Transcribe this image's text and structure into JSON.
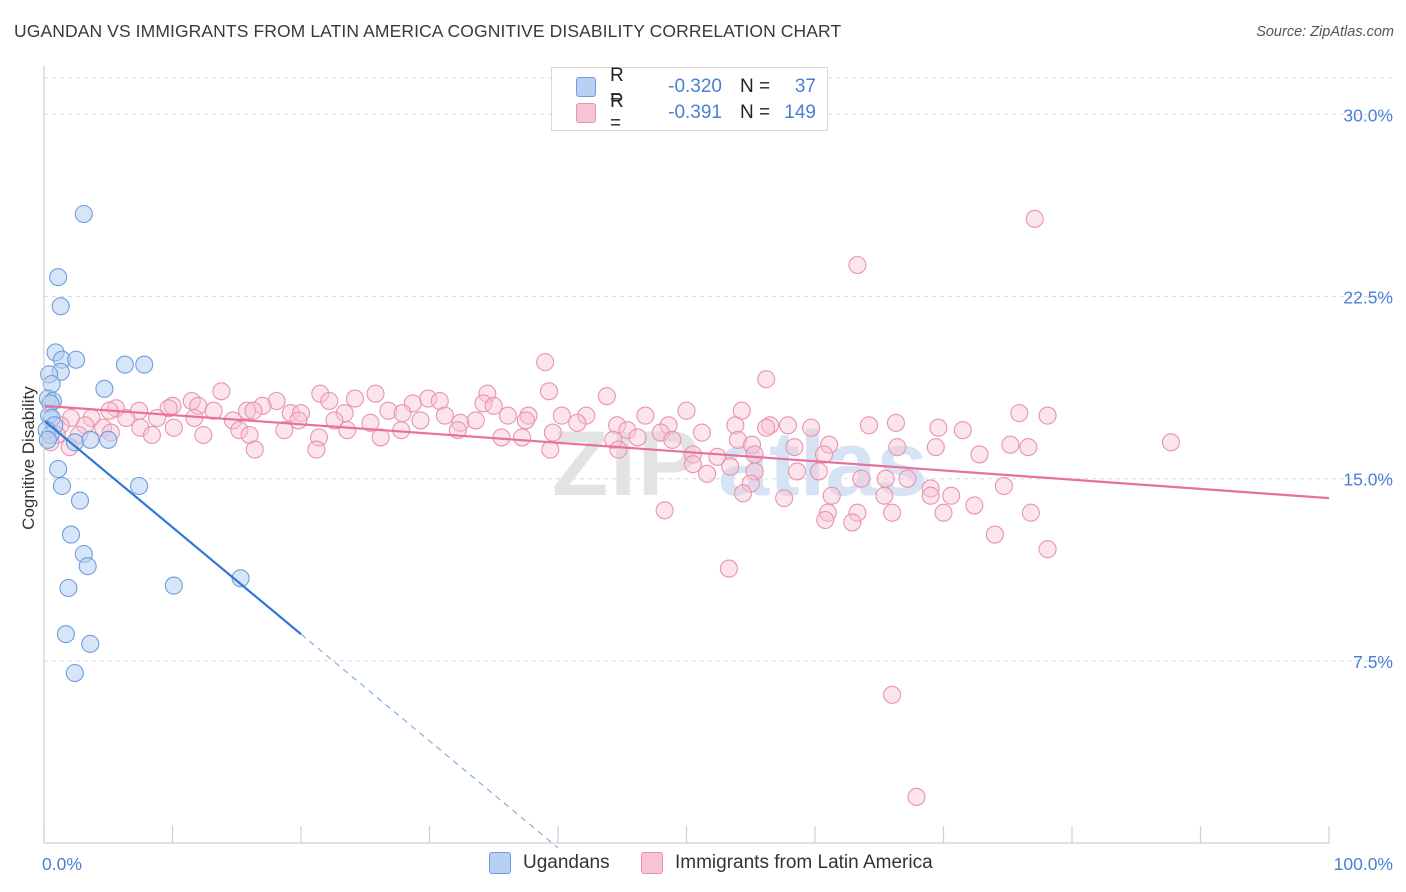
{
  "header": {
    "title": "UGANDAN VS IMMIGRANTS FROM LATIN AMERICA COGNITIVE DISABILITY CORRELATION CHART",
    "source": "Source: ZipAtlas.com"
  },
  "watermark": {
    "zip": "ZIP",
    "atlas": "atlas"
  },
  "colors": {
    "ugandans_fill": "#b7d0f3",
    "ugandans_stroke": "#6e9edf",
    "ugandans_line": "#2f78d6",
    "latam_fill": "#f8c4d4",
    "latam_stroke": "#e893b0",
    "latam_line": "#e8709a",
    "accent_text": "#4a7fd6",
    "grid": "#d8d8d8"
  },
  "legend_top": {
    "rows": [
      {
        "r_label": "R =",
        "r_value": "-0.320",
        "n_label": "N =",
        "n_value": "37"
      },
      {
        "r_label": "R =",
        "r_value": "-0.391",
        "n_label": "N =",
        "n_value": "149"
      }
    ]
  },
  "legend_bottom": {
    "items": [
      {
        "label": "Ugandans"
      },
      {
        "label": "Immigrants from Latin America"
      }
    ]
  },
  "chart_data": {
    "type": "scatter",
    "title": "UGANDAN VS IMMIGRANTS FROM LATIN AMERICA COGNITIVE DISABILITY CORRELATION CHART",
    "xlabel": "",
    "ylabel": "Cognitive Disability",
    "xlim": [
      0,
      100
    ],
    "ylim": [
      0,
      31.5
    ],
    "x_tick_labels": [
      "0.0%",
      "100.0%"
    ],
    "y_ticks": [
      7.5,
      15.0,
      22.5,
      30.0
    ],
    "y_tick_labels": [
      "7.5%",
      "15.0%",
      "22.5%",
      "30.0%"
    ],
    "grid": true,
    "legend_position": "top-center",
    "series": [
      {
        "name": "Ugandans",
        "r": -0.32,
        "n": 37,
        "trend": {
          "x0": 0.0,
          "y0": 17.4,
          "x1": 20.0,
          "y1": 8.6,
          "dash_to_x": 40.0,
          "dash_to_y": -0.2
        },
        "points": [
          [
            3.1,
            25.9
          ],
          [
            1.1,
            23.3
          ],
          [
            1.3,
            22.1
          ],
          [
            0.9,
            20.2
          ],
          [
            1.4,
            19.9
          ],
          [
            2.5,
            19.9
          ],
          [
            7.8,
            19.7
          ],
          [
            6.3,
            19.7
          ],
          [
            1.3,
            19.4
          ],
          [
            0.4,
            19.3
          ],
          [
            0.6,
            18.9
          ],
          [
            4.7,
            18.7
          ],
          [
            0.3,
            18.3
          ],
          [
            0.7,
            18.2
          ],
          [
            0.5,
            18.1
          ],
          [
            0.4,
            17.6
          ],
          [
            0.6,
            17.5
          ],
          [
            0.8,
            17.2
          ],
          [
            0.2,
            17.0
          ],
          [
            0.5,
            16.8
          ],
          [
            0.3,
            16.6
          ],
          [
            3.6,
            16.6
          ],
          [
            5.0,
            16.6
          ],
          [
            2.4,
            16.5
          ],
          [
            1.1,
            15.4
          ],
          [
            1.4,
            14.7
          ],
          [
            7.4,
            14.7
          ],
          [
            2.8,
            14.1
          ],
          [
            2.1,
            12.7
          ],
          [
            3.1,
            11.9
          ],
          [
            3.4,
            11.4
          ],
          [
            15.3,
            10.9
          ],
          [
            1.9,
            10.5
          ],
          [
            10.1,
            10.6
          ],
          [
            1.7,
            8.6
          ],
          [
            3.6,
            8.2
          ],
          [
            2.4,
            7.0
          ]
        ]
      },
      {
        "name": "Immigrants from Latin America",
        "r": -0.391,
        "n": 149,
        "trend": {
          "x0": 0.0,
          "y0": 18.0,
          "x1": 100.0,
          "y1": 14.2
        },
        "points": [
          [
            77.1,
            25.7
          ],
          [
            63.3,
            23.8
          ],
          [
            39.0,
            19.8
          ],
          [
            56.2,
            19.1
          ],
          [
            13.8,
            18.6
          ],
          [
            21.5,
            18.5
          ],
          [
            25.8,
            18.5
          ],
          [
            34.5,
            18.5
          ],
          [
            39.3,
            18.6
          ],
          [
            43.8,
            18.4
          ],
          [
            29.9,
            18.3
          ],
          [
            11.5,
            18.2
          ],
          [
            18.1,
            18.2
          ],
          [
            22.2,
            18.2
          ],
          [
            24.2,
            18.3
          ],
          [
            28.7,
            18.1
          ],
          [
            30.8,
            18.2
          ],
          [
            34.2,
            18.1
          ],
          [
            35.0,
            18.0
          ],
          [
            10.0,
            18.0
          ],
          [
            12.0,
            18.0
          ],
          [
            17.0,
            18.0
          ],
          [
            5.6,
            17.9
          ],
          [
            9.7,
            17.9
          ],
          [
            15.8,
            17.8
          ],
          [
            26.8,
            17.8
          ],
          [
            50.0,
            17.8
          ],
          [
            54.3,
            17.8
          ],
          [
            75.9,
            17.7
          ],
          [
            78.1,
            17.6
          ],
          [
            5.1,
            17.8
          ],
          [
            7.4,
            17.8
          ],
          [
            13.2,
            17.8
          ],
          [
            16.3,
            17.8
          ],
          [
            19.2,
            17.7
          ],
          [
            20.0,
            17.7
          ],
          [
            23.4,
            17.7
          ],
          [
            27.9,
            17.7
          ],
          [
            31.2,
            17.6
          ],
          [
            36.1,
            17.6
          ],
          [
            37.7,
            17.6
          ],
          [
            40.3,
            17.6
          ],
          [
            42.2,
            17.6
          ],
          [
            46.8,
            17.6
          ],
          [
            2.1,
            17.5
          ],
          [
            3.7,
            17.5
          ],
          [
            6.4,
            17.5
          ],
          [
            8.8,
            17.5
          ],
          [
            11.7,
            17.5
          ],
          [
            14.7,
            17.4
          ],
          [
            19.8,
            17.4
          ],
          [
            22.6,
            17.4
          ],
          [
            25.4,
            17.3
          ],
          [
            29.3,
            17.4
          ],
          [
            32.4,
            17.3
          ],
          [
            33.6,
            17.4
          ],
          [
            37.5,
            17.4
          ],
          [
            41.5,
            17.3
          ],
          [
            44.6,
            17.2
          ],
          [
            48.6,
            17.2
          ],
          [
            53.8,
            17.2
          ],
          [
            56.5,
            17.2
          ],
          [
            57.9,
            17.2
          ],
          [
            1.3,
            17.2
          ],
          [
            3.2,
            17.2
          ],
          [
            4.6,
            17.1
          ],
          [
            7.5,
            17.1
          ],
          [
            10.1,
            17.1
          ],
          [
            15.2,
            17.0
          ],
          [
            18.7,
            17.0
          ],
          [
            23.6,
            17.0
          ],
          [
            27.8,
            17.0
          ],
          [
            32.2,
            17.0
          ],
          [
            39.6,
            16.9
          ],
          [
            45.4,
            17.0
          ],
          [
            48.0,
            16.9
          ],
          [
            51.2,
            16.9
          ],
          [
            56.2,
            17.1
          ],
          [
            59.7,
            17.1
          ],
          [
            66.3,
            17.3
          ],
          [
            64.2,
            17.2
          ],
          [
            69.6,
            17.1
          ],
          [
            71.5,
            17.0
          ],
          [
            1.0,
            16.8
          ],
          [
            2.7,
            16.8
          ],
          [
            5.2,
            16.9
          ],
          [
            8.4,
            16.8
          ],
          [
            12.4,
            16.8
          ],
          [
            16.0,
            16.8
          ],
          [
            21.4,
            16.7
          ],
          [
            26.2,
            16.7
          ],
          [
            35.6,
            16.7
          ],
          [
            37.2,
            16.7
          ],
          [
            44.3,
            16.6
          ],
          [
            46.2,
            16.7
          ],
          [
            48.9,
            16.6
          ],
          [
            54.0,
            16.6
          ],
          [
            55.1,
            16.4
          ],
          [
            58.4,
            16.3
          ],
          [
            61.1,
            16.4
          ],
          [
            66.4,
            16.3
          ],
          [
            69.4,
            16.3
          ],
          [
            75.2,
            16.4
          ],
          [
            76.6,
            16.3
          ],
          [
            87.7,
            16.5
          ],
          [
            0.5,
            16.5
          ],
          [
            2.0,
            16.3
          ],
          [
            16.4,
            16.2
          ],
          [
            21.2,
            16.2
          ],
          [
            39.4,
            16.2
          ],
          [
            44.7,
            16.2
          ],
          [
            50.5,
            16.0
          ],
          [
            52.4,
            15.9
          ],
          [
            55.3,
            16.0
          ],
          [
            60.7,
            16.0
          ],
          [
            72.8,
            16.0
          ],
          [
            50.5,
            15.6
          ],
          [
            53.4,
            15.5
          ],
          [
            55.3,
            15.3
          ],
          [
            58.6,
            15.3
          ],
          [
            60.3,
            15.3
          ],
          [
            63.6,
            15.0
          ],
          [
            65.5,
            15.0
          ],
          [
            67.2,
            15.0
          ],
          [
            51.6,
            15.2
          ],
          [
            55.0,
            14.8
          ],
          [
            69.0,
            14.6
          ],
          [
            74.7,
            14.7
          ],
          [
            54.4,
            14.4
          ],
          [
            57.6,
            14.2
          ],
          [
            61.3,
            14.3
          ],
          [
            65.4,
            14.3
          ],
          [
            69.0,
            14.3
          ],
          [
            70.6,
            14.3
          ],
          [
            48.3,
            13.7
          ],
          [
            61.0,
            13.6
          ],
          [
            63.3,
            13.6
          ],
          [
            66.0,
            13.6
          ],
          [
            70.0,
            13.6
          ],
          [
            72.4,
            13.9
          ],
          [
            76.8,
            13.6
          ],
          [
            60.8,
            13.3
          ],
          [
            62.9,
            13.2
          ],
          [
            74.0,
            12.7
          ],
          [
            78.1,
            12.1
          ],
          [
            53.3,
            11.3
          ],
          [
            66.0,
            6.1
          ],
          [
            67.9,
            1.9
          ]
        ]
      }
    ]
  }
}
